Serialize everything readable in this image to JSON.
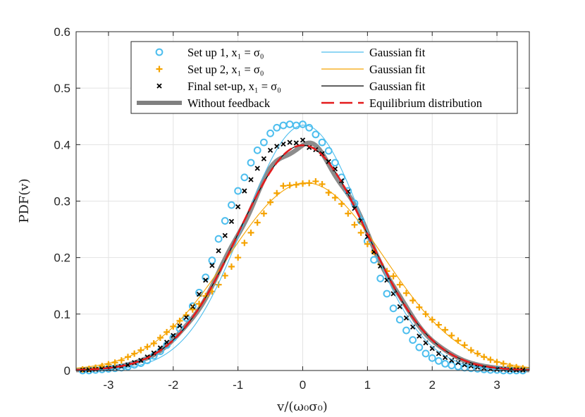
{
  "chart_data": {
    "type": "line",
    "xlabel": "v/(ω₀σ₀)",
    "ylabel": "PDF(v)",
    "xlim": [
      -3.5,
      3.5
    ],
    "ylim": [
      0,
      0.6
    ],
    "xticks": [
      -3,
      -2,
      -1,
      0,
      1,
      2,
      3
    ],
    "xtick_labels": [
      "-3",
      "-2",
      "-1",
      "0",
      "1",
      "2",
      "3"
    ],
    "yticks": [
      0,
      0.1,
      0.2,
      0.3,
      0.4,
      0.5,
      0.6
    ],
    "ytick_labels": [
      "0",
      "0.1",
      "0.2",
      "0.3",
      "0.4",
      "0.5",
      "0.6"
    ],
    "grid": true,
    "legend_position": "top",
    "colors": {
      "setup1": "#4DBEEE",
      "setup2": "#F5A300",
      "final": "#000000",
      "without_feedback": "#808080",
      "equilibrium": "#E41A1C"
    },
    "legend": [
      {
        "key": "setup1",
        "marker": "circle",
        "text": "Set up 1, x₁ = σ₀"
      },
      {
        "key": "fit1",
        "marker": "line",
        "text": "Gaussian fit"
      },
      {
        "key": "setup2",
        "marker": "plus",
        "text": "Set up 2, x₁ = σ₀"
      },
      {
        "key": "fit2",
        "marker": "line",
        "text": "Gaussian fit"
      },
      {
        "key": "final",
        "marker": "cross",
        "text": "Final set-up, x₁ = σ₀"
      },
      {
        "key": "fit3",
        "marker": "line",
        "text": "Gaussian fit"
      },
      {
        "key": "without_feedback",
        "marker": "thick-line",
        "text": "Without feedback"
      },
      {
        "key": "equilibrium",
        "marker": "dashed",
        "text": "Equilibrium distribution"
      }
    ],
    "series": [
      {
        "name": "Set up 1, x₁ = σ₀",
        "style": "circle",
        "x": [
          -3.4,
          -3.3,
          -3.2,
          -3.1,
          -3.0,
          -2.9,
          -2.8,
          -2.7,
          -2.6,
          -2.5,
          -2.4,
          -2.3,
          -2.2,
          -2.1,
          -2.0,
          -1.9,
          -1.8,
          -1.7,
          -1.6,
          -1.5,
          -1.4,
          -1.3,
          -1.2,
          -1.1,
          -1.0,
          -0.9,
          -0.8,
          -0.7,
          -0.6,
          -0.5,
          -0.4,
          -0.3,
          -0.2,
          -0.1,
          0.0,
          0.1,
          0.2,
          0.3,
          0.4,
          0.5,
          0.6,
          0.7,
          0.8,
          0.9,
          1.0,
          1.1,
          1.2,
          1.3,
          1.4,
          1.5,
          1.6,
          1.7,
          1.8,
          1.9,
          2.0,
          2.1,
          2.2,
          2.3,
          2.4,
          2.5,
          2.6,
          2.7,
          2.8,
          2.9,
          3.0,
          3.1,
          3.2,
          3.3,
          3.4
        ],
        "y": [
          0.0,
          0.0,
          0.001,
          0.002,
          0.003,
          0.004,
          0.005,
          0.007,
          0.01,
          0.013,
          0.018,
          0.026,
          0.034,
          0.045,
          0.058,
          0.074,
          0.093,
          0.114,
          0.138,
          0.165,
          0.195,
          0.233,
          0.265,
          0.293,
          0.318,
          0.342,
          0.368,
          0.39,
          0.404,
          0.42,
          0.43,
          0.434,
          0.436,
          0.434,
          0.436,
          0.43,
          0.418,
          0.404,
          0.389,
          0.368,
          0.342,
          0.318,
          0.296,
          0.265,
          0.229,
          0.196,
          0.163,
          0.136,
          0.11,
          0.09,
          0.071,
          0.054,
          0.041,
          0.03,
          0.022,
          0.017,
          0.012,
          0.009,
          0.007,
          0.005,
          0.004,
          0.003,
          0.002,
          0.001,
          0.001,
          0.0,
          0.0,
          0.0,
          0.0
        ]
      },
      {
        "name": "Gaussian fit (Set up 1)",
        "style": "line",
        "gaussian": {
          "mu": 0.02,
          "sigma": 0.918
        }
      },
      {
        "name": "Set up 2, x₁ = σ₀",
        "style": "plus",
        "x": [
          -3.4,
          -3.3,
          -3.2,
          -3.1,
          -3.0,
          -2.9,
          -2.8,
          -2.7,
          -2.6,
          -2.5,
          -2.4,
          -2.3,
          -2.2,
          -2.1,
          -2.0,
          -1.9,
          -1.8,
          -1.7,
          -1.6,
          -1.5,
          -1.4,
          -1.3,
          -1.2,
          -1.1,
          -1.0,
          -0.9,
          -0.8,
          -0.7,
          -0.6,
          -0.5,
          -0.4,
          -0.3,
          -0.2,
          -0.1,
          0.0,
          0.1,
          0.2,
          0.3,
          0.4,
          0.5,
          0.6,
          0.7,
          0.8,
          0.9,
          1.0,
          1.1,
          1.2,
          1.3,
          1.4,
          1.5,
          1.6,
          1.7,
          1.8,
          1.9,
          2.0,
          2.1,
          2.2,
          2.3,
          2.4,
          2.5,
          2.6,
          2.7,
          2.8,
          2.9,
          3.0,
          3.1,
          3.2,
          3.3,
          3.4
        ],
        "y": [
          0.002,
          0.003,
          0.005,
          0.008,
          0.011,
          0.014,
          0.018,
          0.024,
          0.03,
          0.036,
          0.042,
          0.048,
          0.058,
          0.068,
          0.078,
          0.088,
          0.098,
          0.108,
          0.118,
          0.132,
          0.14,
          0.152,
          0.168,
          0.184,
          0.2,
          0.226,
          0.244,
          0.262,
          0.278,
          0.298,
          0.314,
          0.327,
          0.328,
          0.329,
          0.331,
          0.332,
          0.335,
          0.33,
          0.315,
          0.306,
          0.295,
          0.278,
          0.258,
          0.244,
          0.224,
          0.21,
          0.188,
          0.176,
          0.167,
          0.152,
          0.137,
          0.124,
          0.112,
          0.1,
          0.09,
          0.081,
          0.072,
          0.062,
          0.053,
          0.045,
          0.036,
          0.03,
          0.024,
          0.019,
          0.015,
          0.012,
          0.008,
          0.006,
          0.004
        ]
      },
      {
        "name": "Gaussian fit (Set up 2)",
        "style": "line",
        "gaussian": {
          "mu": 0.05,
          "sigma": 1.2
        }
      },
      {
        "name": "Final set-up, x₁ = σ₀",
        "style": "cross",
        "x": [
          -3.4,
          -3.3,
          -3.2,
          -3.1,
          -3.0,
          -2.9,
          -2.8,
          -2.7,
          -2.6,
          -2.5,
          -2.4,
          -2.3,
          -2.2,
          -2.1,
          -2.0,
          -1.9,
          -1.8,
          -1.7,
          -1.6,
          -1.5,
          -1.4,
          -1.3,
          -1.2,
          -1.1,
          -1.0,
          -0.9,
          -0.8,
          -0.7,
          -0.6,
          -0.5,
          -0.4,
          -0.3,
          -0.2,
          -0.1,
          0.0,
          0.1,
          0.2,
          0.3,
          0.4,
          0.5,
          0.6,
          0.7,
          0.8,
          0.9,
          1.0,
          1.1,
          1.2,
          1.3,
          1.4,
          1.5,
          1.6,
          1.7,
          1.8,
          1.9,
          2.0,
          2.1,
          2.2,
          2.3,
          2.4,
          2.5,
          2.6,
          2.7,
          2.8,
          2.9,
          3.0,
          3.1,
          3.2,
          3.3,
          3.4
        ],
        "y": [
          0.001,
          0.001,
          0.002,
          0.003,
          0.004,
          0.005,
          0.007,
          0.01,
          0.014,
          0.018,
          0.024,
          0.031,
          0.04,
          0.05,
          0.062,
          0.079,
          0.094,
          0.113,
          0.135,
          0.16,
          0.186,
          0.212,
          0.239,
          0.264,
          0.29,
          0.318,
          0.338,
          0.358,
          0.375,
          0.39,
          0.397,
          0.401,
          0.404,
          0.403,
          0.408,
          0.395,
          0.391,
          0.384,
          0.37,
          0.357,
          0.336,
          0.317,
          0.287,
          0.265,
          0.237,
          0.21,
          0.185,
          0.16,
          0.136,
          0.113,
          0.093,
          0.077,
          0.061,
          0.049,
          0.039,
          0.03,
          0.023,
          0.018,
          0.014,
          0.01,
          0.008,
          0.006,
          0.004,
          0.003,
          0.002,
          0.002,
          0.001,
          0.001,
          0.001
        ]
      },
      {
        "name": "Gaussian fit (Final set-up)",
        "style": "line",
        "gaussian": {
          "mu": 0.0,
          "sigma": 1.0
        }
      },
      {
        "name": "Without feedback",
        "style": "thick-line",
        "gaussian": {
          "mu": 0.0,
          "sigma": 1.0
        }
      },
      {
        "name": "Equilibrium distribution",
        "style": "dashed",
        "gaussian": {
          "mu": 0.0,
          "sigma": 1.0
        }
      }
    ]
  }
}
